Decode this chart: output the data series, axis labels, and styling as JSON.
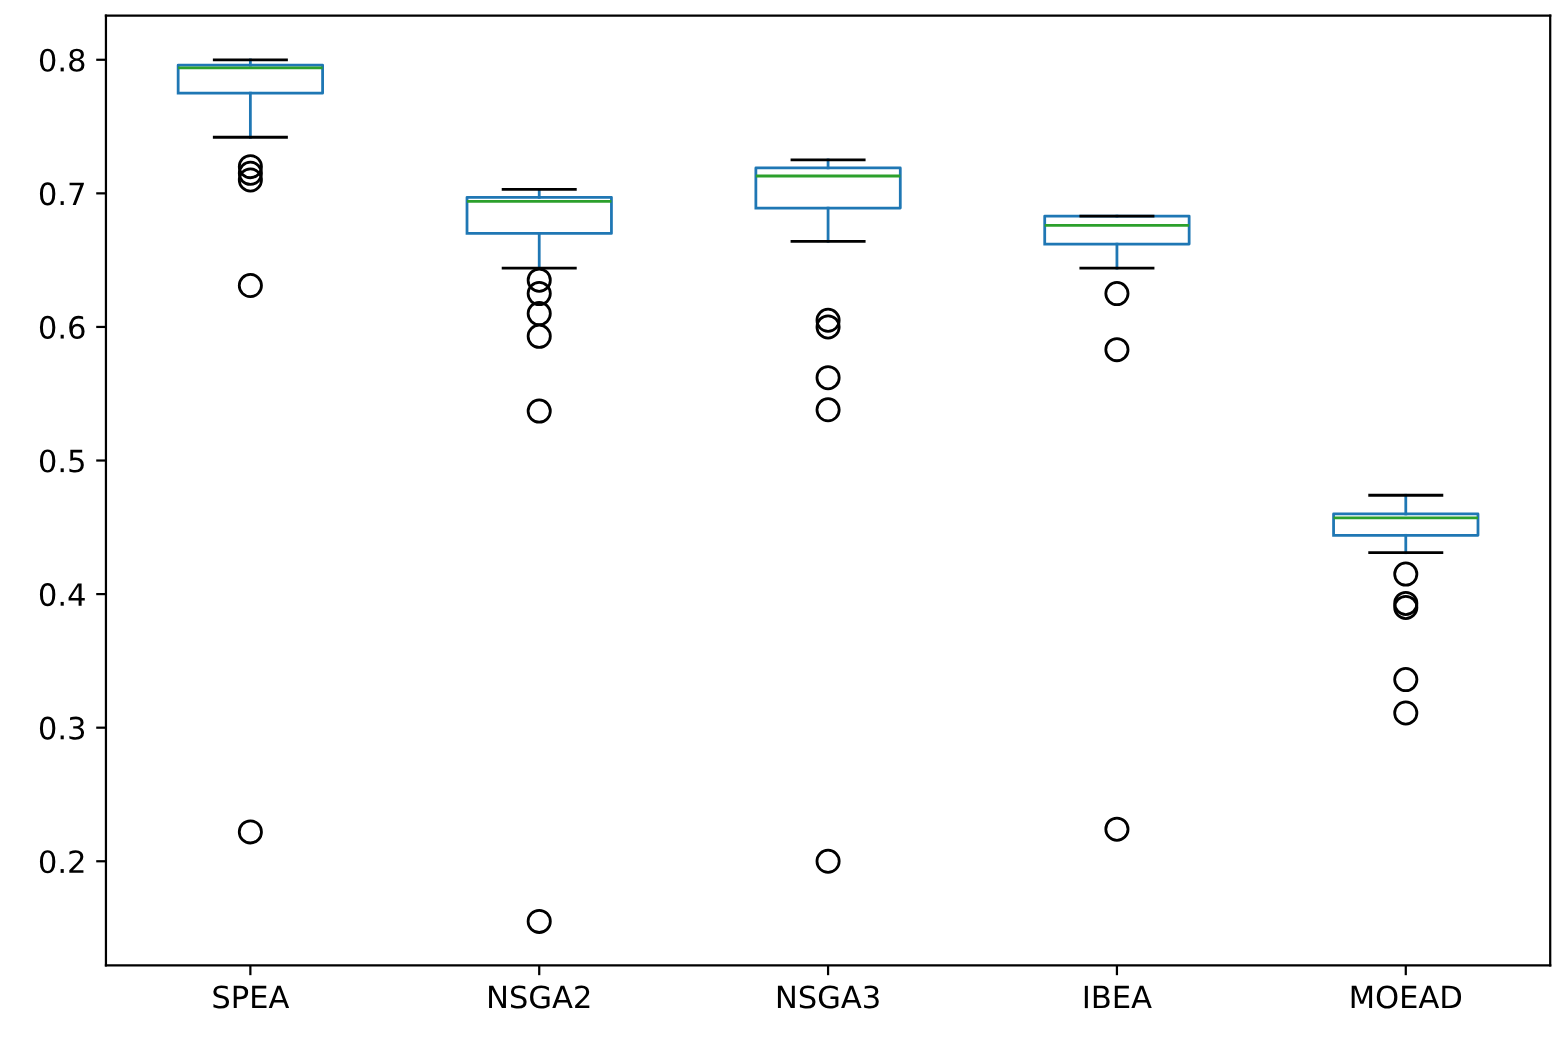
{
  "chart_data": {
    "type": "box",
    "categories": [
      "SPEA",
      "NSGA2",
      "NSGA3",
      "IBEA",
      "MOEAD"
    ],
    "boxes": [
      {
        "low": 0.742,
        "q1": 0.775,
        "median": 0.794,
        "q3": 0.796,
        "high": 0.8,
        "outliers": [
          0.72,
          0.715,
          0.71,
          0.631,
          0.222
        ]
      },
      {
        "low": 0.644,
        "q1": 0.67,
        "median": 0.694,
        "q3": 0.697,
        "high": 0.703,
        "outliers": [
          0.635,
          0.625,
          0.61,
          0.593,
          0.537,
          0.155
        ]
      },
      {
        "low": 0.664,
        "q1": 0.689,
        "median": 0.713,
        "q3": 0.719,
        "high": 0.725,
        "outliers": [
          0.605,
          0.6,
          0.562,
          0.538,
          0.2
        ]
      },
      {
        "low": 0.644,
        "q1": 0.662,
        "median": 0.676,
        "q3": 0.683,
        "high": 0.683,
        "outliers": [
          0.625,
          0.583,
          0.224
        ]
      },
      {
        "low": 0.431,
        "q1": 0.444,
        "median": 0.457,
        "q3": 0.46,
        "high": 0.474,
        "outliers": [
          0.415,
          0.393,
          0.39,
          0.336,
          0.311
        ]
      }
    ],
    "color": "#1f77b4",
    "ylim": [
      0.122,
      0.833
    ],
    "yticks": [
      0.2,
      0.3,
      0.4,
      0.5,
      0.6,
      0.7,
      0.8
    ],
    "grid": false
  }
}
